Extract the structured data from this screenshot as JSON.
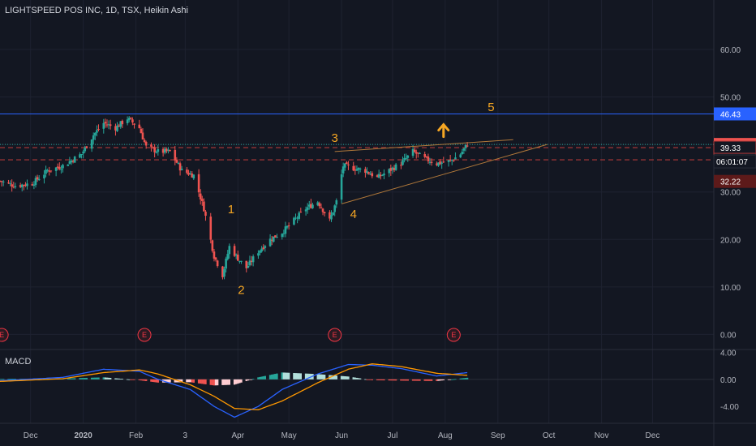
{
  "header": {
    "title": "LIGHTSPEED POS INC, 1D, TSX, Heikin Ashi"
  },
  "macd": {
    "label": "MACD"
  },
  "chart_data": {
    "type": "candlestick",
    "title": "LIGHTSPEED POS INC, 1D, TSX, Heikin Ashi",
    "price_axis": {
      "ticks": [
        60,
        50,
        40,
        30,
        20,
        10,
        0
      ],
      "tick_labels": [
        "60.00",
        "50.00",
        "40.00",
        "30.00",
        "20.00",
        "10.00",
        "0.00"
      ],
      "ylim": [
        -3,
        67
      ]
    },
    "macd_axis": {
      "ticks": [
        4,
        0,
        -4
      ],
      "tick_labels": [
        "4.00",
        "0.00",
        "-4.00"
      ],
      "ylim": [
        -6.5,
        4.3
      ]
    },
    "time_axis": [
      "Dec",
      "2020",
      "Feb",
      "3",
      "Apr",
      "May",
      "Jun",
      "Jul",
      "Aug",
      "Sep",
      "Oct",
      "Nov",
      "Dec"
    ],
    "price_levels": [
      {
        "value": 46.43,
        "label": "46.43",
        "style": "solid",
        "color": "#2962ff"
      },
      {
        "value": 40.0,
        "label": "40.00",
        "style": "dotted",
        "color": "#26a69a"
      },
      {
        "value": 39.33,
        "label": "39.33",
        "style": "dashed",
        "color": "#b23a3a"
      },
      {
        "value": 36.77,
        "label": "36.77",
        "style": "dashed",
        "color": "#b23a3a"
      },
      {
        "value": 32.22,
        "label": "32.22",
        "style": "none",
        "color": "#5d1a1a"
      }
    ],
    "countdown": "06:01:07",
    "wave_labels": [
      "1",
      "2",
      "3",
      "4",
      "5"
    ],
    "earnings_markers": [
      "E",
      "E",
      "E",
      "E"
    ],
    "price_path": [
      {
        "date": "2019-11-13",
        "price": 32.3
      },
      {
        "date": "2019-11-22",
        "price": 31.3
      },
      {
        "date": "2019-12-02",
        "price": 31.8
      },
      {
        "date": "2019-12-11",
        "price": 34.5
      },
      {
        "date": "2019-12-20",
        "price": 35.5
      },
      {
        "date": "2019-12-31",
        "price": 38.0
      },
      {
        "date": "2020-01-07",
        "price": 42.0
      },
      {
        "date": "2020-01-13",
        "price": 44.5
      },
      {
        "date": "2020-01-20",
        "price": 43.5
      },
      {
        "date": "2020-01-27",
        "price": 45.5
      },
      {
        "date": "2020-02-03",
        "price": 43.5
      },
      {
        "date": "2020-02-07",
        "price": 39.5
      },
      {
        "date": "2020-02-14",
        "price": 38.5
      },
      {
        "date": "2020-02-21",
        "price": 38.5
      },
      {
        "date": "2020-02-28",
        "price": 34.5
      },
      {
        "date": "2020-03-06",
        "price": 33.5
      },
      {
        "date": "2020-03-12",
        "price": 26.5
      },
      {
        "date": "2020-03-18",
        "price": 16.5
      },
      {
        "date": "2020-03-23",
        "price": 12.5
      },
      {
        "date": "2020-03-27",
        "price": 18.5
      },
      {
        "date": "2020-04-01",
        "price": 16.0
      },
      {
        "date": "2020-04-06",
        "price": 14.0
      },
      {
        "date": "2020-04-13",
        "price": 17.5
      },
      {
        "date": "2020-04-20",
        "price": 20.0
      },
      {
        "date": "2020-04-27",
        "price": 21.5
      },
      {
        "date": "2020-05-04",
        "price": 24.0
      },
      {
        "date": "2020-05-11",
        "price": 26.5
      },
      {
        "date": "2020-05-18",
        "price": 28.0
      },
      {
        "date": "2020-05-25",
        "price": 24.0
      },
      {
        "date": "2020-05-29",
        "price": 28.0
      },
      {
        "date": "2020-06-02",
        "price": 35.5
      },
      {
        "date": "2020-06-08",
        "price": 35.0
      },
      {
        "date": "2020-06-15",
        "price": 34.5
      },
      {
        "date": "2020-06-22",
        "price": 33.0
      },
      {
        "date": "2020-06-29",
        "price": 34.5
      },
      {
        "date": "2020-07-06",
        "price": 36.0
      },
      {
        "date": "2020-07-13",
        "price": 38.5
      },
      {
        "date": "2020-07-20",
        "price": 37.0
      },
      {
        "date": "2020-07-27",
        "price": 36.0
      },
      {
        "date": "2020-08-04",
        "price": 36.5
      },
      {
        "date": "2020-08-10",
        "price": 38.0
      },
      {
        "date": "2020-08-14",
        "price": 40.0
      }
    ],
    "macd_line_path": [
      {
        "date": "2019-11-13",
        "value": -0.2
      },
      {
        "date": "2019-12-20",
        "value": 0.3
      },
      {
        "date": "2020-01-13",
        "value": 1.5
      },
      {
        "date": "2020-02-03",
        "value": 1.2
      },
      {
        "date": "2020-02-14",
        "value": 0.0
      },
      {
        "date": "2020-03-04",
        "value": -1.5
      },
      {
        "date": "2020-03-18",
        "value": -4.0
      },
      {
        "date": "2020-03-30",
        "value": -5.6
      },
      {
        "date": "2020-04-13",
        "value": -4.0
      },
      {
        "date": "2020-04-27",
        "value": -1.5
      },
      {
        "date": "2020-05-18",
        "value": 0.8
      },
      {
        "date": "2020-06-05",
        "value": 2.2
      },
      {
        "date": "2020-06-19",
        "value": 2.1
      },
      {
        "date": "2020-07-06",
        "value": 1.6
      },
      {
        "date": "2020-07-27",
        "value": 0.5
      },
      {
        "date": "2020-08-14",
        "value": 1.0
      }
    ],
    "signal_line_path": [
      {
        "date": "2019-11-13",
        "value": -0.3
      },
      {
        "date": "2019-12-20",
        "value": 0.1
      },
      {
        "date": "2020-01-13",
        "value": 1.0
      },
      {
        "date": "2020-02-03",
        "value": 1.4
      },
      {
        "date": "2020-02-14",
        "value": 0.8
      },
      {
        "date": "2020-03-04",
        "value": -0.8
      },
      {
        "date": "2020-03-18",
        "value": -2.5
      },
      {
        "date": "2020-03-30",
        "value": -4.3
      },
      {
        "date": "2020-04-13",
        "value": -4.5
      },
      {
        "date": "2020-04-27",
        "value": -3.2
      },
      {
        "date": "2020-05-18",
        "value": -0.5
      },
      {
        "date": "2020-06-05",
        "value": 1.5
      },
      {
        "date": "2020-06-19",
        "value": 2.3
      },
      {
        "date": "2020-07-06",
        "value": 1.9
      },
      {
        "date": "2020-07-27",
        "value": 0.9
      },
      {
        "date": "2020-08-14",
        "value": 0.6
      }
    ],
    "grid": true
  },
  "colors": {
    "up": "#26a69a",
    "down": "#ef5350",
    "accent": "#2962ff",
    "wave": "#f5a623",
    "earnings": "#f23645"
  }
}
